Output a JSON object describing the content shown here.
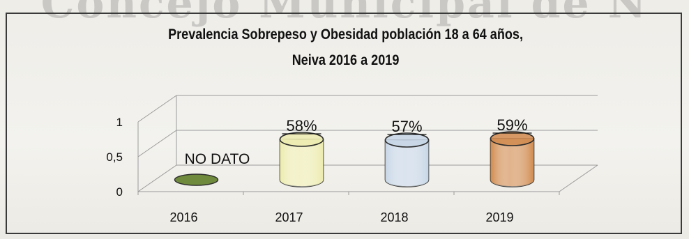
{
  "watermark": "Concejo Municipal de N",
  "chart_data": {
    "type": "bar",
    "style": "3d-cylinder",
    "title": "Prevalencia Sobrepeso y Obesidad población 18 a 64 años,",
    "subtitle": "Neiva 2016 a 2019",
    "categories": [
      "2016",
      "2017",
      "2018",
      "2019"
    ],
    "values": [
      0,
      0.58,
      0.57,
      0.59
    ],
    "data_labels": [
      "NO DATO",
      "58%",
      "57%",
      "59%"
    ],
    "yticks": [
      "0",
      "0,5",
      "1"
    ],
    "ytick_values": [
      0,
      0.5,
      1
    ],
    "ylim": [
      0,
      1
    ],
    "grid": true,
    "xlabel": "",
    "ylabel": "",
    "colors": [
      "#6f8a3c",
      "#ecebae",
      "#c6d5e5",
      "#d08a4d"
    ],
    "outline": "#2c2c2c"
  }
}
